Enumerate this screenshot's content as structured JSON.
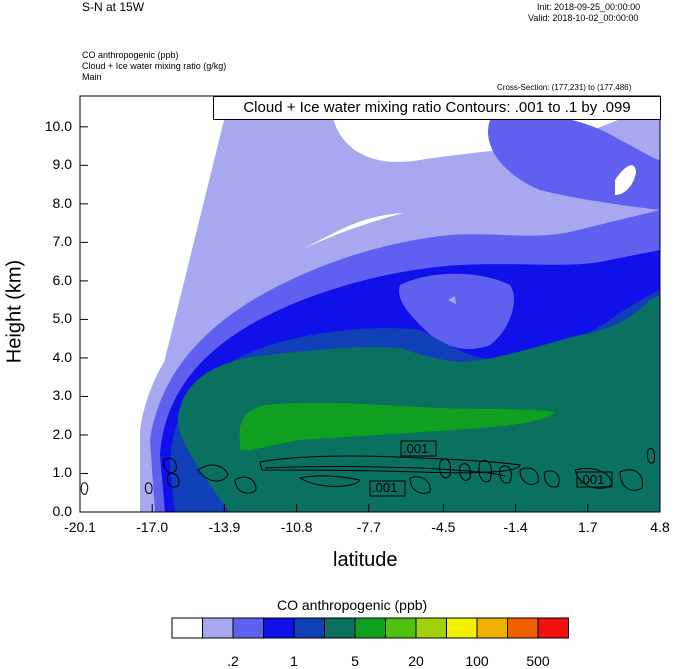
{
  "header": {
    "title": "S-N at 15W",
    "init": "Init: 2018-09-25_00:00:00",
    "valid": "Valid: 2018-10-02_00:00:00",
    "field1": "CO anthropogenic   (ppb)",
    "field2": "Cloud + Ice water mixing ratio   (g/kg)",
    "field3": "Main",
    "cross_section": "Cross-Section: (177,231) to (177,486)",
    "contour_note": "Cloud + Ice water mixing ratio Contours: .001 to .1 by .099"
  },
  "colors": {
    "levels": [
      "#ffffff",
      "#a8a8f0",
      "#6060f0",
      "#1010e8",
      "#1040b8",
      "#0a7060",
      "#10a020",
      "#50c010",
      "#a0d010",
      "#f0f000",
      "#f0b000",
      "#f06000",
      "#f01010"
    ],
    "contour": "#000000"
  },
  "chart_data": {
    "type": "contour",
    "xlabel": "latitude",
    "ylabel": "Height (km)",
    "x_ticks": [
      "-20.1",
      "-17.0",
      "-13.9",
      "-10.8",
      "-7.7",
      "-4.5",
      "-1.4",
      "1.7",
      "4.8"
    ],
    "x_tick_values": [
      -20.1,
      -17.0,
      -13.9,
      -10.8,
      -7.7,
      -4.5,
      -1.4,
      1.7,
      4.8
    ],
    "y_ticks": [
      "0.0",
      "1.0",
      "2.0",
      "3.0",
      "4.0",
      "5.0",
      "6.0",
      "7.0",
      "8.0",
      "9.0",
      "10.0"
    ],
    "y_tick_values": [
      0,
      1,
      2,
      3,
      4,
      5,
      6,
      7,
      8,
      9,
      10
    ],
    "xlim": [
      -20.1,
      4.8
    ],
    "ylim": [
      0,
      10.8
    ],
    "contour_labels": [
      ".001",
      ".001",
      ".001"
    ],
    "colorbar": {
      "title": "CO anthropogenic  (ppb)",
      "labels": [
        ".2",
        "1",
        "5",
        "20",
        "100",
        "500"
      ]
    }
  }
}
